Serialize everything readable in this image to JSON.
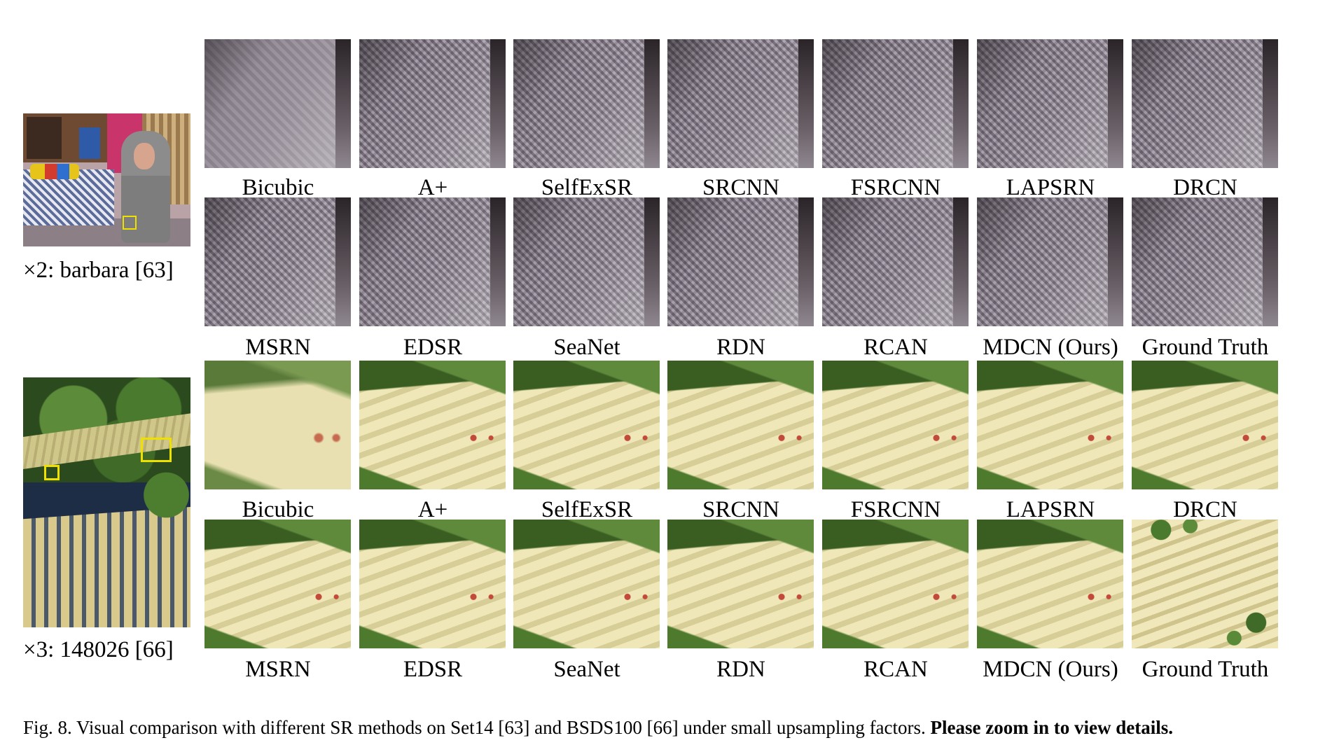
{
  "examples": [
    {
      "thumb_label": "×2: barbara [63]",
      "rows": [
        [
          "Bicubic",
          "A+",
          "SelfExSR",
          "SRCNN",
          "FSRCNN",
          "LAPSRN",
          "DRCN"
        ],
        [
          "MSRN",
          "EDSR",
          "SeaNet",
          "RDN",
          "RCAN",
          "MDCN (Ours)",
          "Ground Truth"
        ]
      ]
    },
    {
      "thumb_label": "×3: 148026 [66]",
      "rows": [
        [
          "Bicubic",
          "A+",
          "SelfExSR",
          "SRCNN",
          "FSRCNN",
          "LAPSRN",
          "DRCN"
        ],
        [
          "MSRN",
          "EDSR",
          "SeaNet",
          "RDN",
          "RCAN",
          "MDCN (Ours)",
          "Ground Truth"
        ]
      ]
    }
  ],
  "caption": {
    "prefix": "Fig. 8.",
    "text": "Visual comparison with different SR methods on Set14 [63] and BSDS100 [66] under small upsampling factors.",
    "bold": "Please zoom in to view details."
  }
}
